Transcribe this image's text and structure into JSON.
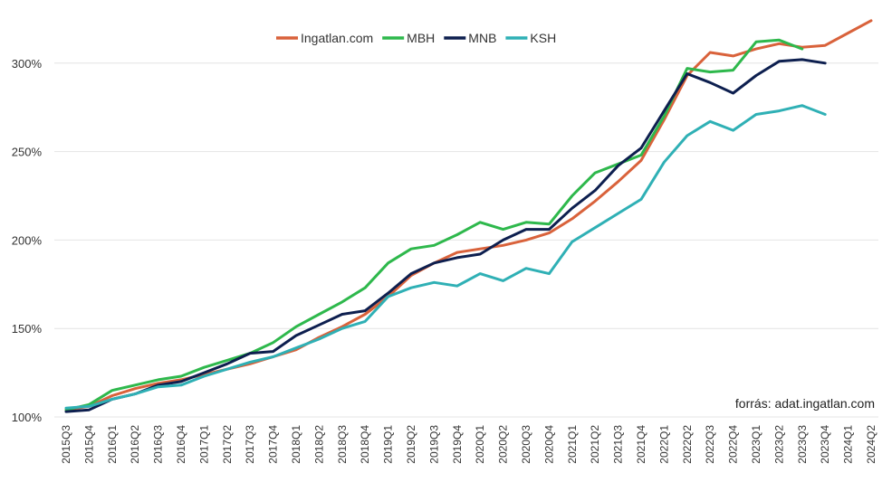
{
  "chart_data": {
    "type": "line",
    "categories": [
      "2015Q3",
      "2015Q4",
      "2016Q1",
      "2016Q2",
      "2016Q3",
      "2016Q4",
      "2017Q1",
      "2017Q2",
      "2017Q3",
      "2017Q4",
      "2018Q1",
      "2018Q2",
      "2018Q3",
      "2018Q4",
      "2019Q1",
      "2019Q2",
      "2019Q3",
      "2019Q4",
      "2020Q1",
      "2020Q2",
      "2020Q3",
      "2020Q4",
      "2021Q1",
      "2021Q2",
      "2021Q3",
      "2021Q4",
      "2022Q1",
      "2022Q2",
      "2022Q3",
      "2022Q4",
      "2023Q1",
      "2023Q2",
      "2023Q3",
      "2023Q4",
      "2024Q1",
      "2024Q2"
    ],
    "series": [
      {
        "name": "Ingatlan.com",
        "color": "#d9623b",
        "values": [
          104,
          106,
          112,
          116,
          119,
          121,
          124,
          127,
          130,
          134,
          138,
          145,
          151,
          158,
          168,
          180,
          187,
          193,
          195,
          197,
          200,
          204,
          212,
          222,
          233,
          245,
          268,
          293,
          306,
          304,
          308,
          311,
          309,
          310,
          317,
          324
        ]
      },
      {
        "name": "MBH",
        "color": "#2eb84c",
        "values": [
          104,
          107,
          115,
          118,
          121,
          123,
          128,
          132,
          136,
          142,
          151,
          158,
          165,
          173,
          187,
          195,
          197,
          203,
          210,
          206,
          210,
          209,
          225,
          238,
          243,
          248,
          270,
          297,
          295,
          296,
          312,
          313,
          308,
          null,
          null,
          null
        ]
      },
      {
        "name": "MNB",
        "color": "#0d1f4f",
        "values": [
          103,
          104,
          110,
          113,
          118,
          120,
          125,
          130,
          136,
          137,
          146,
          152,
          158,
          160,
          170,
          181,
          187,
          190,
          192,
          200,
          206,
          206,
          218,
          228,
          242,
          252,
          273,
          294,
          289,
          283,
          293,
          301,
          302,
          300,
          null,
          null
        ]
      },
      {
        "name": "KSH",
        "color": "#2fb0b5",
        "values": [
          105,
          106,
          110,
          113,
          117,
          118,
          123,
          127,
          131,
          134,
          139,
          144,
          150,
          154,
          168,
          173,
          176,
          174,
          181,
          177,
          184,
          181,
          199,
          207,
          215,
          223,
          244,
          259,
          267,
          262,
          271,
          273,
          276,
          271,
          null,
          null
        ]
      }
    ],
    "ylim": [
      100,
      328
    ],
    "yticks": [
      {
        "value": 100,
        "label": "100%"
      },
      {
        "value": 150,
        "label": "150%"
      },
      {
        "value": 200,
        "label": "200%"
      },
      {
        "value": 250,
        "label": "250%"
      },
      {
        "value": 300,
        "label": "300%"
      }
    ],
    "grid": true,
    "legend": "top",
    "annotation": "forrás: adat.ingatlan.com"
  }
}
